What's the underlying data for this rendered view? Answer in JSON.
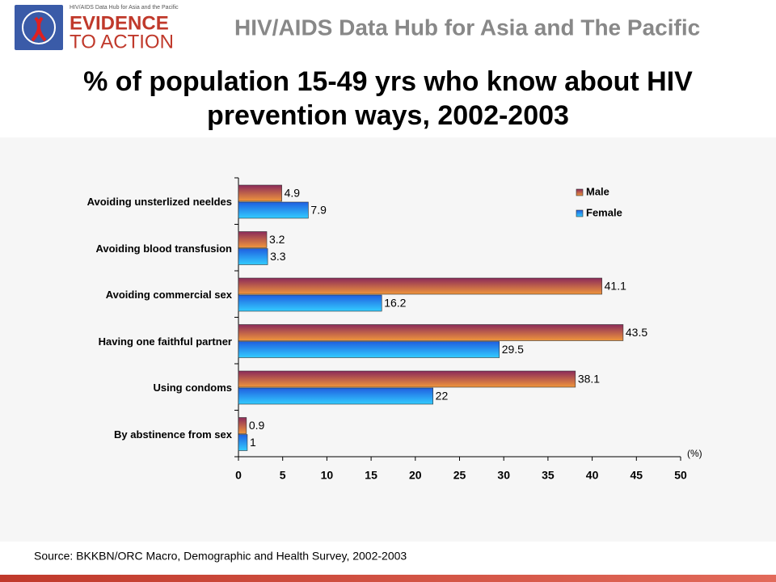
{
  "header": {
    "logo_small": "HIV/AIDS Data Hub for Asia and the Pacific",
    "logo_line1": "EVIDENCE",
    "logo_line2": "TO ACTION",
    "title": "HIV/AIDS Data Hub for Asia and The Pacific"
  },
  "chart_data": {
    "type": "bar",
    "orientation": "horizontal",
    "title": "% of population 15-49 yrs who know about HIV prevention ways, 2002-2003",
    "categories": [
      "Avoiding unsterlized neeldes",
      "Avoiding blood transfusion",
      "Avoiding commercial sex",
      "Having one faithful partner",
      "Using condoms",
      "By abstinence from sex"
    ],
    "series": [
      {
        "name": "Male",
        "color": "#f0963c",
        "values": [
          4.9,
          3.2,
          41.1,
          43.5,
          38.1,
          0.9
        ]
      },
      {
        "name": "Female",
        "color": "#33ccff",
        "values": [
          7.9,
          3.3,
          16.2,
          29.5,
          22,
          1
        ]
      }
    ],
    "xlim": [
      0,
      50
    ],
    "xticks": [
      0,
      5,
      10,
      15,
      20,
      25,
      30,
      35,
      40,
      45,
      50
    ],
    "x_unit_label": "(%)",
    "legend": "top-right"
  },
  "source": "Source: BKKBN/ORC Macro, Demographic and Health Survey, 2002-2003"
}
